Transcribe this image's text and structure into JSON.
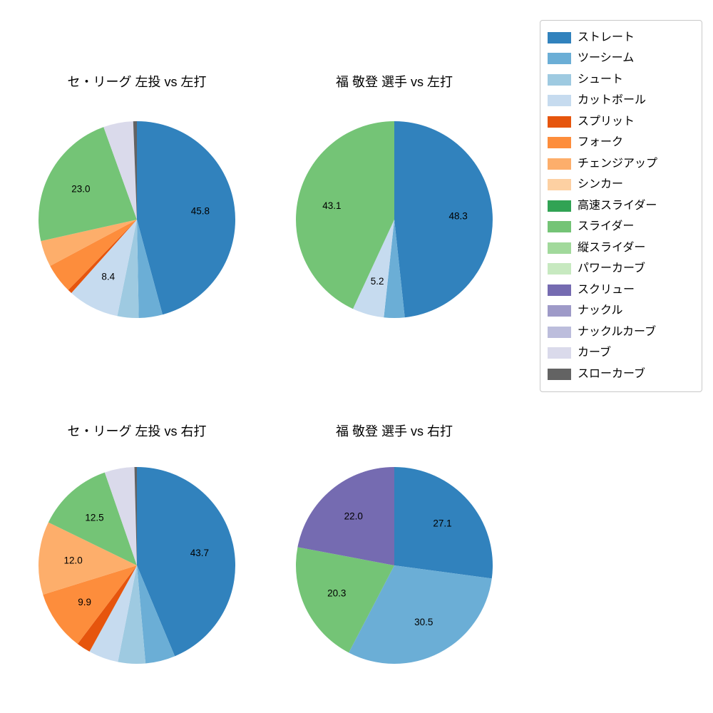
{
  "figure_background": "#ffffff",
  "palette": {
    "straight": "#3182bd",
    "two_seam": "#6baed6",
    "shuuto": "#9ecae1",
    "cutter": "#c6dbef",
    "split": "#e6550d",
    "fork": "#fd8d3c",
    "changeup": "#fdae6b",
    "sinker": "#fdd0a2",
    "fast_slider": "#31a354",
    "slider": "#74c476",
    "vertical_slider": "#a1d99b",
    "power_curve": "#c7e9c0",
    "screw": "#756bb1",
    "knuckle": "#9e9ac8",
    "knuckle_curve": "#bcbddc",
    "curve": "#dadaeb",
    "slow_curve": "#636363"
  },
  "legend": {
    "position": "upper right",
    "entries": [
      {
        "label": "ストレート",
        "color": "#3182bd"
      },
      {
        "label": "ツーシーム",
        "color": "#6baed6"
      },
      {
        "label": "シュート",
        "color": "#9ecae1"
      },
      {
        "label": "カットボール",
        "color": "#c6dbef"
      },
      {
        "label": "スプリット",
        "color": "#e6550d"
      },
      {
        "label": "フォーク",
        "color": "#fd8d3c"
      },
      {
        "label": "チェンジアップ",
        "color": "#fdae6b"
      },
      {
        "label": "シンカー",
        "color": "#fdd0a2"
      },
      {
        "label": "高速スライダー",
        "color": "#31a354"
      },
      {
        "label": "スライダー",
        "color": "#74c476"
      },
      {
        "label": "縦スライダー",
        "color": "#a1d99b"
      },
      {
        "label": "パワーカーブ",
        "color": "#c7e9c0"
      },
      {
        "label": "スクリュー",
        "color": "#756bb1"
      },
      {
        "label": "ナックル",
        "color": "#9e9ac8"
      },
      {
        "label": "ナックルカーブ",
        "color": "#bcbddc"
      },
      {
        "label": "カーブ",
        "color": "#dadaeb"
      },
      {
        "label": "スローカーブ",
        "color": "#636363"
      }
    ]
  },
  "chart_data": [
    {
      "type": "pie",
      "title": "セ・リーグ 左投 vs 左打",
      "start_angle": 90,
      "direction": "clockwise",
      "values_are_percent": true,
      "label_threshold_percent": 5.0,
      "slices": [
        {
          "label": "ストレート",
          "value": 45.8,
          "color": "#3182bd",
          "labeled": true
        },
        {
          "label": "ツーシーム",
          "value": 3.9,
          "color": "#6baed6",
          "labeled": false
        },
        {
          "label": "シュート",
          "value": 3.5,
          "color": "#9ecae1",
          "labeled": false
        },
        {
          "label": "カットボール",
          "value": 8.4,
          "color": "#c6dbef",
          "labeled": true
        },
        {
          "label": "スプリット",
          "value": 0.7,
          "color": "#e6550d",
          "labeled": false
        },
        {
          "label": "フォーク",
          "value": 4.9,
          "color": "#fd8d3c",
          "labeled": false
        },
        {
          "label": "チェンジアップ",
          "value": 4.3,
          "color": "#fdae6b",
          "labeled": false
        },
        {
          "label": "スライダー",
          "value": 23.0,
          "color": "#74c476",
          "labeled": true
        },
        {
          "label": "カーブ",
          "value": 4.9,
          "color": "#dadaeb",
          "labeled": false
        },
        {
          "label": "スローカーブ",
          "value": 0.6,
          "color": "#636363",
          "labeled": false
        }
      ]
    },
    {
      "type": "pie",
      "title": "福 敬登 選手 vs 左打",
      "start_angle": 90,
      "direction": "clockwise",
      "values_are_percent": true,
      "label_threshold_percent": 5.0,
      "slices": [
        {
          "label": "ストレート",
          "value": 48.3,
          "color": "#3182bd",
          "labeled": true
        },
        {
          "label": "ツーシーム",
          "value": 3.4,
          "color": "#6baed6",
          "labeled": false
        },
        {
          "label": "カットボール",
          "value": 5.2,
          "color": "#c6dbef",
          "labeled": true
        },
        {
          "label": "スライダー",
          "value": 43.1,
          "color": "#74c476",
          "labeled": true
        }
      ]
    },
    {
      "type": "pie",
      "title": "セ・リーグ 左投 vs 右打",
      "start_angle": 90,
      "direction": "clockwise",
      "values_are_percent": true,
      "label_threshold_percent": 5.0,
      "slices": [
        {
          "label": "ストレート",
          "value": 43.7,
          "color": "#3182bd",
          "labeled": true
        },
        {
          "label": "ツーシーム",
          "value": 4.9,
          "color": "#6baed6",
          "labeled": false
        },
        {
          "label": "シュート",
          "value": 4.5,
          "color": "#9ecae1",
          "labeled": false
        },
        {
          "label": "カットボール",
          "value": 4.9,
          "color": "#c6dbef",
          "labeled": false
        },
        {
          "label": "スプリット",
          "value": 2.3,
          "color": "#e6550d",
          "labeled": false
        },
        {
          "label": "フォーク",
          "value": 9.9,
          "color": "#fd8d3c",
          "labeled": true
        },
        {
          "label": "チェンジアップ",
          "value": 12.0,
          "color": "#fdae6b",
          "labeled": true
        },
        {
          "label": "スライダー",
          "value": 12.5,
          "color": "#74c476",
          "labeled": true
        },
        {
          "label": "カーブ",
          "value": 4.9,
          "color": "#dadaeb",
          "labeled": false
        },
        {
          "label": "スローカーブ",
          "value": 0.4,
          "color": "#636363",
          "labeled": false
        }
      ]
    },
    {
      "type": "pie",
      "title": "福 敬登 選手 vs 右打",
      "start_angle": 90,
      "direction": "clockwise",
      "values_are_percent": true,
      "label_threshold_percent": 5.0,
      "slices": [
        {
          "label": "ストレート",
          "value": 27.1,
          "color": "#3182bd",
          "labeled": true
        },
        {
          "label": "ツーシーム",
          "value": 30.5,
          "color": "#6baed6",
          "labeled": true
        },
        {
          "label": "スライダー",
          "value": 20.3,
          "color": "#74c476",
          "labeled": true
        },
        {
          "label": "スクリュー",
          "value": 22.0,
          "color": "#756bb1",
          "labeled": true
        }
      ]
    }
  ]
}
